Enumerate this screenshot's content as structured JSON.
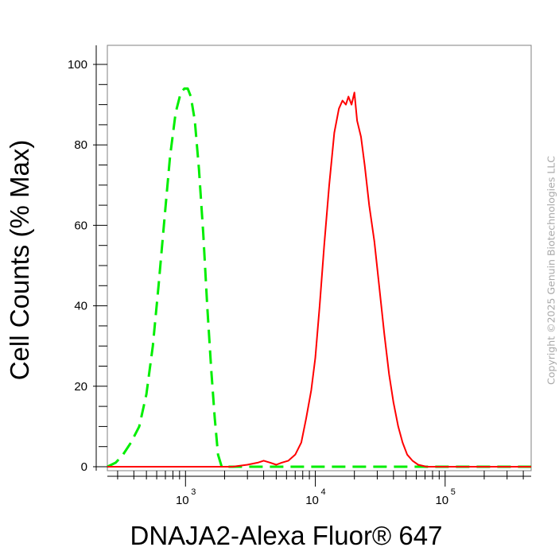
{
  "chart_data": {
    "type": "line",
    "xlabel": "DNAJA2-Alexa Fluor® 647",
    "ylabel": "Cell Counts (% Max)",
    "x_scale": "log",
    "xlim": [
      250,
      460000
    ],
    "ylim": [
      0,
      105
    ],
    "x_ticks": [
      {
        "value": 1000,
        "base": "10",
        "exp": "3"
      },
      {
        "value": 10000,
        "base": "10",
        "exp": "4"
      },
      {
        "value": 100000,
        "base": "10",
        "exp": "5"
      }
    ],
    "y_ticks": [
      0,
      20,
      40,
      60,
      80,
      100
    ],
    "grid": false,
    "series": [
      {
        "color": "#00ee00",
        "style": "dashed",
        "points": [
          [
            250,
            0
          ],
          [
            290,
            1
          ],
          [
            330,
            3
          ],
          [
            380,
            6
          ],
          [
            440,
            10
          ],
          [
            500,
            18
          ],
          [
            560,
            30
          ],
          [
            620,
            45
          ],
          [
            690,
            62
          ],
          [
            760,
            77
          ],
          [
            840,
            88
          ],
          [
            920,
            93
          ],
          [
            980,
            94
          ],
          [
            1040,
            94
          ],
          [
            1100,
            92
          ],
          [
            1180,
            86
          ],
          [
            1270,
            74
          ],
          [
            1370,
            58
          ],
          [
            1470,
            40
          ],
          [
            1580,
            24
          ],
          [
            1680,
            12
          ],
          [
            1780,
            3
          ],
          [
            1900,
            0
          ],
          [
            460000,
            0
          ]
        ]
      },
      {
        "color": "#ff0000",
        "style": "solid",
        "points": [
          [
            250,
            0
          ],
          [
            2300,
            0
          ],
          [
            3000,
            0.5
          ],
          [
            3600,
            1
          ],
          [
            4000,
            1.5
          ],
          [
            4500,
            1
          ],
          [
            5000,
            0.5
          ],
          [
            5500,
            1
          ],
          [
            6200,
            1.5
          ],
          [
            7000,
            3
          ],
          [
            7800,
            6
          ],
          [
            8500,
            12
          ],
          [
            9300,
            19
          ],
          [
            10000,
            27
          ],
          [
            10800,
            40
          ],
          [
            11700,
            55
          ],
          [
            12800,
            70
          ],
          [
            14000,
            83
          ],
          [
            15200,
            89
          ],
          [
            16200,
            91
          ],
          [
            17200,
            90
          ],
          [
            18000,
            92
          ],
          [
            19000,
            90
          ],
          [
            20000,
            93
          ],
          [
            21000,
            86
          ],
          [
            22500,
            82
          ],
          [
            24000,
            75
          ],
          [
            26000,
            65
          ],
          [
            28500,
            56
          ],
          [
            31000,
            45
          ],
          [
            34000,
            33
          ],
          [
            37000,
            23
          ],
          [
            40000,
            16
          ],
          [
            43500,
            10
          ],
          [
            47000,
            6
          ],
          [
            51000,
            3
          ],
          [
            56000,
            1.5
          ],
          [
            62000,
            0.5
          ],
          [
            72000,
            0
          ],
          [
            460000,
            0
          ]
        ]
      }
    ]
  },
  "watermark": "Copyright ©2025 Genuin Biotechnologies LLC"
}
